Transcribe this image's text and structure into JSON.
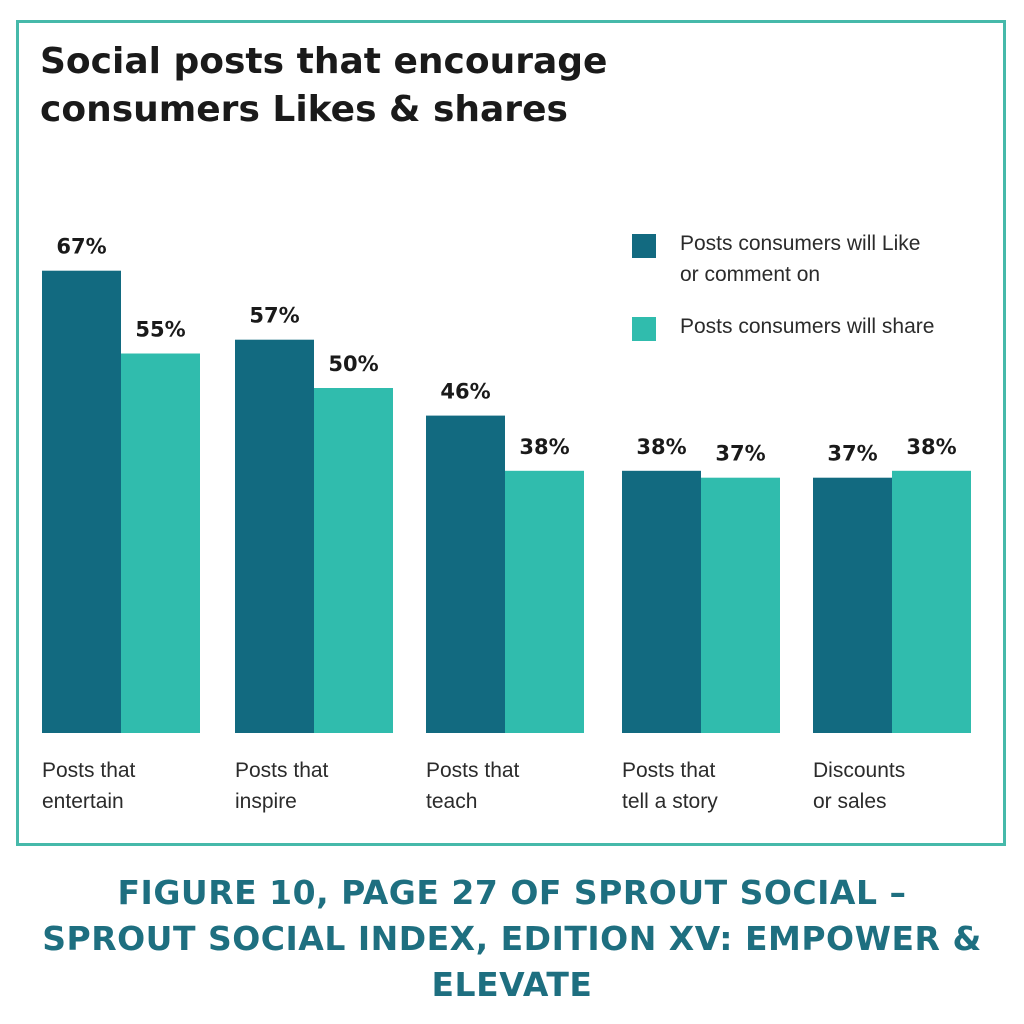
{
  "chart_data": {
    "type": "bar",
    "title": "Social posts that encourage consumers Likes & shares",
    "categories": [
      [
        "Posts that",
        "entertain"
      ],
      [
        "Posts that",
        "inspire"
      ],
      [
        "Posts that",
        "teach"
      ],
      [
        "Posts that",
        "tell a story"
      ],
      [
        "Discounts",
        "or sales"
      ]
    ],
    "series": [
      {
        "name": "Posts consumers will Like or comment on",
        "legend_lines": [
          "Posts consumers will Like",
          "or comment on"
        ],
        "color": "#126a80",
        "values": [
          67,
          57,
          46,
          38,
          37
        ],
        "labels": [
          "67%",
          "57%",
          "46%",
          "38%",
          "37%"
        ]
      },
      {
        "name": "Posts consumers will share",
        "legend_lines": [
          "Posts consumers will share"
        ],
        "color": "#30bcad",
        "values": [
          55,
          50,
          38,
          37,
          38
        ],
        "labels": [
          "55%",
          "50%",
          "38%",
          "37%",
          "38%"
        ]
      }
    ],
    "ylim": [
      0,
      100
    ],
    "grid": false,
    "legend_position": "top-right"
  },
  "caption": {
    "line1": "FIGURE 10, PAGE 27 OF SPROUT SOCIAL –",
    "line2": "SPROUT SOCIAL INDEX, EDITION XV: EMPOWER & ELEVATE"
  },
  "colors": {
    "frame": "#46b9aa",
    "caption": "#1e6f80"
  }
}
